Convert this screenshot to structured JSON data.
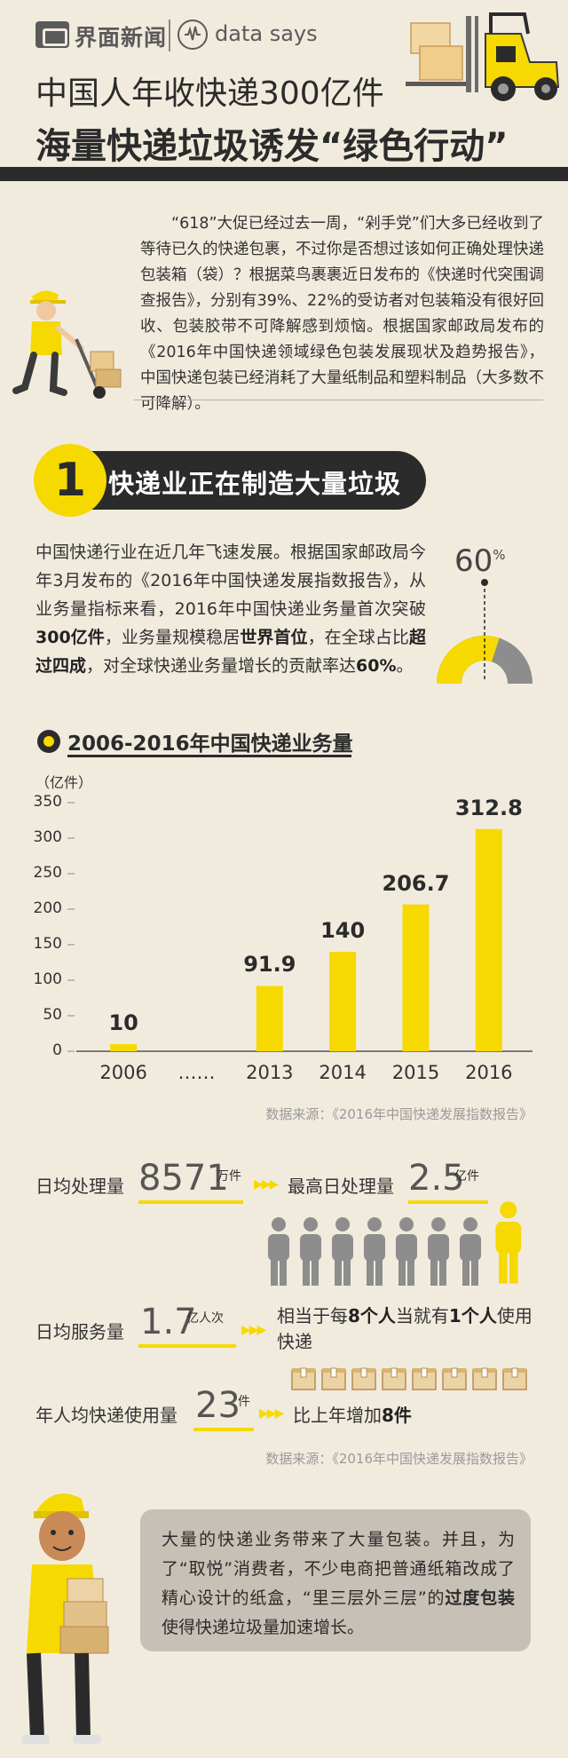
{
  "header": {
    "brand": "界面新闻",
    "datasays": "data says",
    "title_line1": "中国人年收快递300亿件",
    "title_line2": "海量快递垃圾诱发“绿色行动”"
  },
  "intro": {
    "text": "“618”大促已经过去一周，“剁手党”们大多已经收到了等待已久的快递包裹，不过你是否想过该如何正确处理快递包装箱（袋）？根据菜鸟裹裹近日发布的《快递时代突围调查报告》，分别有39%、22%的受访者对包装箱没有很好回收、包装胶带不可降解感到烦恼。根据国家邮政局发布的《2016年中国快递领域绿色包装发展现状及趋势报告》，中国快递包装已经消耗了大量纸制品和塑料制品（大多数不可降解）。"
  },
  "section1": {
    "number": "1",
    "title": "快递业正在制造大量垃圾",
    "text_parts": [
      "中国快递行业在近几年飞速发展。根据国家邮政局今年3月发布的《2016年中国快递发展指数报告》，从业务量指标来看，2016年中国快递业务量首次突破",
      "300亿件",
      "，业务量规模稳居",
      "世界首位",
      "，在全球占比",
      "超过四成",
      "，对全球快递业务量增长的贡献率达",
      "60%",
      "。"
    ],
    "gauge_value": "60",
    "gauge_unit": "%",
    "gauge_fraction": 0.6
  },
  "chart_data": {
    "type": "bar",
    "title": "2006-2016年中国快递业务量",
    "unit": "（亿件）",
    "categories": [
      "2006",
      "……",
      "2013",
      "2014",
      "2015",
      "2016"
    ],
    "values": [
      10,
      null,
      91.9,
      140,
      206.7,
      312.8
    ],
    "value_labels": [
      "10",
      "",
      "91.9",
      "140",
      "206.7",
      "312.8"
    ],
    "yticks": [
      "0",
      "50",
      "100",
      "150",
      "200",
      "250",
      "300",
      "350"
    ],
    "ylim": [
      0,
      350
    ],
    "bar_color": "#f6d900",
    "source": "数据来源：《2016年中国快递发展指数报告》"
  },
  "stats": {
    "daily_label": "日均处理量",
    "daily_value": "8571",
    "daily_unit": "万件",
    "peak_label": "最高日处理量",
    "peak_value": "2.5",
    "peak_unit": "亿件",
    "service_label": "日均服务量",
    "service_value": "1.7",
    "service_unit": "亿人次",
    "service_desc_parts": [
      "相当于每",
      "8个人",
      "当就有",
      "1个人",
      "使用快递"
    ],
    "per_capita_label": "年人均快递使用量",
    "per_capita_value": "23",
    "per_capita_unit": "件",
    "per_capita_desc_parts": [
      "比上年增加",
      "8件"
    ],
    "people_total": 8,
    "people_highlight": 1,
    "boxes_count": 8,
    "arrows": "▶▶▶",
    "source": "数据来源：《2016年中国快递发展指数报告》"
  },
  "footer": {
    "text_parts": [
      "大量的快递业务带来了大量包装。并且，为了“取悦”消费者，不少电商把普通纸箱改成了精心设计的纸盒，“里三层外三层”的",
      "过度包装",
      "使得快递垃圾量加速增长。"
    ]
  },
  "colors": {
    "accent": "#f6d900",
    "background": "#f1ebde",
    "dark": "#2b2b2b",
    "gray": "#8d8d8d"
  }
}
